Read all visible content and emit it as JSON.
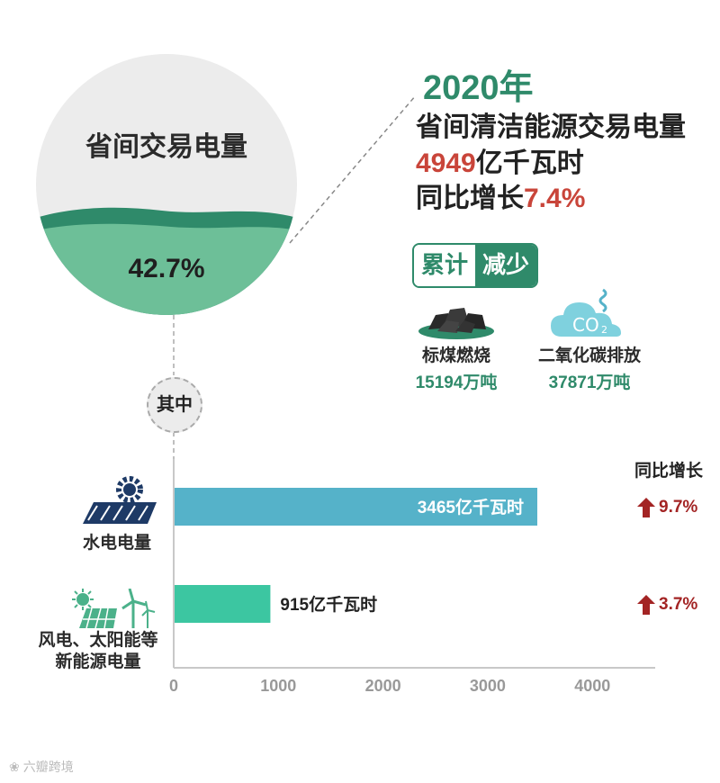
{
  "circle": {
    "title": "省间交易电量",
    "percent": "42.7%",
    "share": 0.427
  },
  "headline": {
    "year": "2020年",
    "subject": "省间清洁能源交易电量",
    "amount_value": "4949",
    "amount_unit": "亿千瓦时",
    "growth_prefix": "同比增长",
    "growth_value": "7.4%"
  },
  "badge": {
    "left": "累计",
    "right": "减少"
  },
  "stats": [
    {
      "icon": "coal-icon",
      "label": "标煤燃烧",
      "value": "15194万吨"
    },
    {
      "icon": "co2-cloud-icon",
      "label": "二氧化碳排放",
      "value": "37871万吨"
    }
  ],
  "connector_label": "其中",
  "yoy_header": "同比增长",
  "chart_data": {
    "type": "bar",
    "orientation": "horizontal",
    "categories": [
      "水电电量",
      "风电、太阳能等新能源电量"
    ],
    "category_lines": [
      [
        "水电电量"
      ],
      [
        "风电、太阳能等",
        "新能源电量"
      ]
    ],
    "values": [
      3465,
      915
    ],
    "value_labels": [
      "3465亿千瓦时",
      "915亿千瓦时"
    ],
    "yoy": [
      "9.7%",
      "3.7%"
    ],
    "colors": [
      "#55b2c9",
      "#3cc6a1"
    ],
    "xlim": [
      0,
      4600
    ],
    "xticks": [
      0,
      1000,
      2000,
      3000,
      4000
    ],
    "grid": false
  },
  "colors": {
    "green": "#2f8a6a",
    "red": "#c9453a",
    "dark_red": "#a32424"
  },
  "watermark": "六瓣跨境"
}
